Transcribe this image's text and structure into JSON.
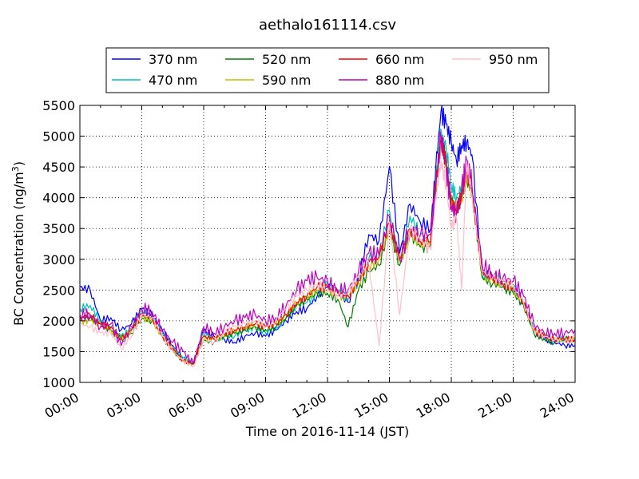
{
  "chart_data": {
    "type": "line",
    "title": "aethalo161114.csv",
    "xlabel": "Time on 2016-11-14 (JST)",
    "ylabel_main": "BC Concentration (ng/m",
    "ylabel_sup": "3",
    "ylabel_end": ")",
    "xlim": [
      0,
      24
    ],
    "ylim": [
      1000,
      5500
    ],
    "x_ticks": [
      {
        "value": 0,
        "label": "00:00"
      },
      {
        "value": 3,
        "label": "03:00"
      },
      {
        "value": 6,
        "label": "06:00"
      },
      {
        "value": 9,
        "label": "09:00"
      },
      {
        "value": 12,
        "label": "12:00"
      },
      {
        "value": 15,
        "label": "15:00"
      },
      {
        "value": 18,
        "label": "18:00"
      },
      {
        "value": 21,
        "label": "21:00"
      },
      {
        "value": 24,
        "label": "24:00"
      }
    ],
    "y_ticks": [
      {
        "value": 1000,
        "label": "1000"
      },
      {
        "value": 1500,
        "label": "1500"
      },
      {
        "value": 2000,
        "label": "2000"
      },
      {
        "value": 2500,
        "label": "2500"
      },
      {
        "value": 3000,
        "label": "3000"
      },
      {
        "value": 3500,
        "label": "3500"
      },
      {
        "value": 4000,
        "label": "4000"
      },
      {
        "value": 4500,
        "label": "4500"
      },
      {
        "value": 5000,
        "label": "5000"
      },
      {
        "value": 5500,
        "label": "5500"
      }
    ],
    "grid": true,
    "legend_position": "top",
    "x": [
      0,
      0.5,
      1,
      1.5,
      2,
      2.5,
      3,
      3.5,
      4,
      4.5,
      5,
      5.5,
      6,
      6.5,
      7,
      7.5,
      8,
      8.5,
      9,
      9.5,
      10,
      10.5,
      11,
      11.5,
      12,
      12.5,
      13,
      13.5,
      14,
      14.5,
      15,
      15.5,
      16,
      16.5,
      17,
      17.25,
      17.5,
      17.75,
      18,
      18.25,
      18.5,
      18.75,
      19,
      19.5,
      20,
      20.5,
      21,
      21.5,
      22,
      22.5,
      23,
      23.5,
      24
    ],
    "series": [
      {
        "name": "370 nm",
        "color": "#0000ff",
        "values": [
          2550,
          2500,
          2000,
          2050,
          1850,
          1950,
          2200,
          2100,
          1850,
          1600,
          1400,
          1300,
          1850,
          1750,
          1700,
          1650,
          1750,
          1800,
          1750,
          1850,
          2000,
          2150,
          2200,
          2400,
          2550,
          2450,
          2300,
          2700,
          3400,
          3300,
          4500,
          3100,
          3900,
          3600,
          3500,
          4500,
          5400,
          5200,
          4900,
          4600,
          4850,
          4900,
          4700,
          2800,
          2700,
          2600,
          2550,
          2300,
          1850,
          1700,
          1650,
          1600,
          1600
        ]
      },
      {
        "name": "470 nm",
        "color": "#00bfbf",
        "values": [
          2200,
          2250,
          2000,
          1900,
          1750,
          1850,
          2150,
          2050,
          1800,
          1550,
          1400,
          1300,
          1800,
          1700,
          1750,
          1750,
          1850,
          1900,
          1800,
          1900,
          2050,
          2250,
          2300,
          2450,
          2600,
          2500,
          2350,
          2650,
          3000,
          3100,
          3800,
          3000,
          3700,
          3400,
          3300,
          4300,
          5100,
          4800,
          4200,
          4000,
          4200,
          4400,
          4200,
          2750,
          2700,
          2650,
          2550,
          2300,
          1850,
          1750,
          1700,
          1700,
          1700
        ]
      },
      {
        "name": "520 nm",
        "color": "#008000",
        "values": [
          2050,
          2050,
          1950,
          1850,
          1700,
          1800,
          2050,
          2000,
          1750,
          1500,
          1350,
          1300,
          1700,
          1650,
          1750,
          1800,
          1850,
          1900,
          1850,
          1900,
          2050,
          2250,
          2350,
          2450,
          2450,
          2350,
          1900,
          2500,
          2800,
          2900,
          3500,
          2900,
          3400,
          3200,
          3200,
          4100,
          4950,
          4600,
          3950,
          3800,
          4000,
          4300,
          4100,
          2700,
          2600,
          2550,
          2450,
          2250,
          1800,
          1700,
          1650,
          1700,
          1700
        ]
      },
      {
        "name": "590 nm",
        "color": "#bfbf00",
        "values": [
          2000,
          2000,
          1950,
          1850,
          1700,
          1850,
          2050,
          2000,
          1750,
          1550,
          1350,
          1300,
          1700,
          1700,
          1750,
          1850,
          1900,
          1950,
          1900,
          1950,
          2100,
          2300,
          2400,
          2500,
          2500,
          2400,
          2400,
          2600,
          2900,
          3000,
          3500,
          2950,
          3400,
          3250,
          3250,
          4150,
          4900,
          4500,
          3900,
          3800,
          4000,
          4350,
          4100,
          2750,
          2650,
          2600,
          2500,
          2300,
          1850,
          1750,
          1700,
          1700,
          1700
        ]
      },
      {
        "name": "660 nm",
        "color": "#ff0000",
        "values": [
          2050,
          2100,
          1950,
          1900,
          1700,
          1850,
          2100,
          2050,
          1750,
          1550,
          1350,
          1300,
          1750,
          1700,
          1800,
          1850,
          1900,
          1950,
          1900,
          1950,
          2100,
          2300,
          2400,
          2550,
          2550,
          2450,
          2400,
          2650,
          2950,
          3050,
          3600,
          3000,
          3500,
          3300,
          3300,
          4200,
          4950,
          4550,
          3900,
          3800,
          4050,
          4400,
          4100,
          2800,
          2700,
          2600,
          2550,
          2300,
          1850,
          1750,
          1700,
          1700,
          1700
        ]
      },
      {
        "name": "880 nm",
        "color": "#bf00bf",
        "values": [
          2100,
          2100,
          1900,
          1950,
          1600,
          1900,
          2200,
          2150,
          1850,
          1650,
          1500,
          1300,
          1900,
          1800,
          1900,
          2000,
          2050,
          2100,
          2000,
          2050,
          2250,
          2500,
          2650,
          2700,
          2650,
          2500,
          2500,
          2800,
          3100,
          3050,
          3700,
          3000,
          3500,
          3400,
          3400,
          4200,
          5000,
          4500,
          3850,
          3750,
          4100,
          4600,
          4200,
          2900,
          2750,
          2700,
          2650,
          2400,
          1950,
          1800,
          1800,
          1800,
          1850
        ]
      },
      {
        "name": "950 nm",
        "color": "#ffc0cb",
        "values": [
          1950,
          1900,
          1800,
          1800,
          1550,
          1750,
          2100,
          2050,
          1750,
          1500,
          1350,
          1250,
          1700,
          1650,
          1800,
          1900,
          1950,
          2000,
          1900,
          2000,
          2200,
          2400,
          2500,
          2600,
          2500,
          2400,
          2450,
          2700,
          2950,
          1600,
          3600,
          2100,
          3500,
          3300,
          3150,
          4000,
          4600,
          4200,
          3500,
          3700,
          2500,
          4600,
          4050,
          2800,
          2700,
          2650,
          2550,
          2300,
          1850,
          1750,
          1700,
          1650,
          1750
        ]
      }
    ]
  }
}
